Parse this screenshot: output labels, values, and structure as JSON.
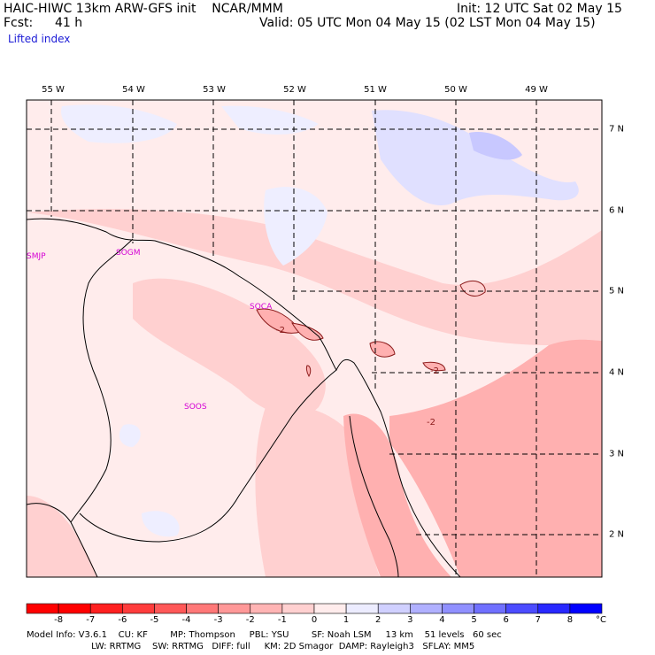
{
  "header": {
    "model_line": "HAIC-HIWC 13km ARW-GFS init    NCAR/MMM",
    "init": "Init: 12 UTC Sat 02 May 15",
    "fcst_label": "Fcst:",
    "fcst_value": "41 h",
    "valid": "Valid: 05 UTC Mon 04 May 15 (02 LST Mon 04 May 15)",
    "field": "Lifted index"
  },
  "map": {
    "lon_ticks": [
      "55 W",
      "54 W",
      "53 W",
      "52 W",
      "51 W",
      "50 W",
      "49 W"
    ],
    "lat_ticks": [
      "7 N",
      "6 N",
      "5 N",
      "4 N",
      "3 N",
      "2 N"
    ],
    "stations": [
      {
        "id": "SMJP"
      },
      {
        "id": "SOGM"
      },
      {
        "id": "SOCA"
      },
      {
        "id": "SOOS"
      }
    ],
    "contour_labels": [
      "-2",
      "-2",
      "-2"
    ]
  },
  "colorbar": {
    "labels": [
      "-8",
      "-7",
      "-6",
      "-5",
      "-4",
      "-3",
      "-2",
      "-1",
      "0",
      "1",
      "2",
      "3",
      "4",
      "5",
      "6",
      "7",
      "8"
    ],
    "unit": "°C",
    "colors": [
      "#ff0000",
      "#ff2020",
      "#ff3c3c",
      "#ff5858",
      "#ff7878",
      "#ff9898",
      "#ffb4b4",
      "#ffd0d0",
      "#ffecec",
      "#ececff",
      "#d0d0ff",
      "#b0b0ff",
      "#9090ff",
      "#7070ff",
      "#4c4cff",
      "#2828ff",
      "#0000ff"
    ]
  },
  "footer": {
    "line1": "Model Info: V3.6.1    CU: KF        MP: Thompson     PBL: YSU        SF: Noah LSM     13 km    51 levels   60 sec",
    "line2": "                       LW: RRTMG    SW: RRTMG   DIFF: full     KM: 2D Smagor  DAMP: Rayleigh3   SFLAY: MM5"
  }
}
